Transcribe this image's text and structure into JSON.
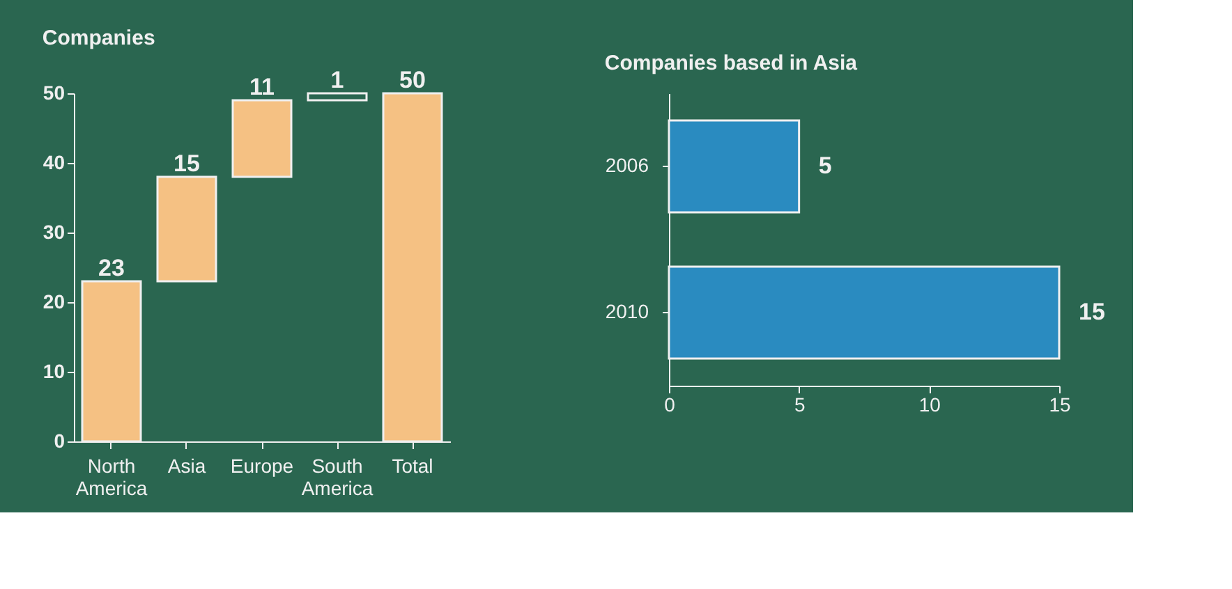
{
  "chart_data": [
    {
      "type": "bar",
      "title": "Companies",
      "categories": [
        "North America",
        "Asia",
        "Europe",
        "South America",
        "Total"
      ],
      "values": [
        23,
        15,
        11,
        1,
        50
      ],
      "base": [
        0,
        23,
        38,
        49,
        0
      ],
      "colors": [
        "#f5c183",
        "#f5c183",
        "#f5c183",
        "#2a6650",
        "#f5c183"
      ],
      "ylim": [
        0,
        50
      ],
      "yticks": [
        0,
        10,
        20,
        30,
        40,
        50
      ],
      "grid": false,
      "data_labels": true
    },
    {
      "type": "bar",
      "orientation": "horizontal",
      "title": "Companies based in Asia",
      "categories": [
        "2006",
        "2010"
      ],
      "values": [
        5,
        15
      ],
      "color": "#2a8bc0",
      "xlim": [
        0,
        15
      ],
      "xticks": [
        0,
        5,
        10,
        15
      ],
      "grid": false,
      "data_labels": true
    }
  ]
}
